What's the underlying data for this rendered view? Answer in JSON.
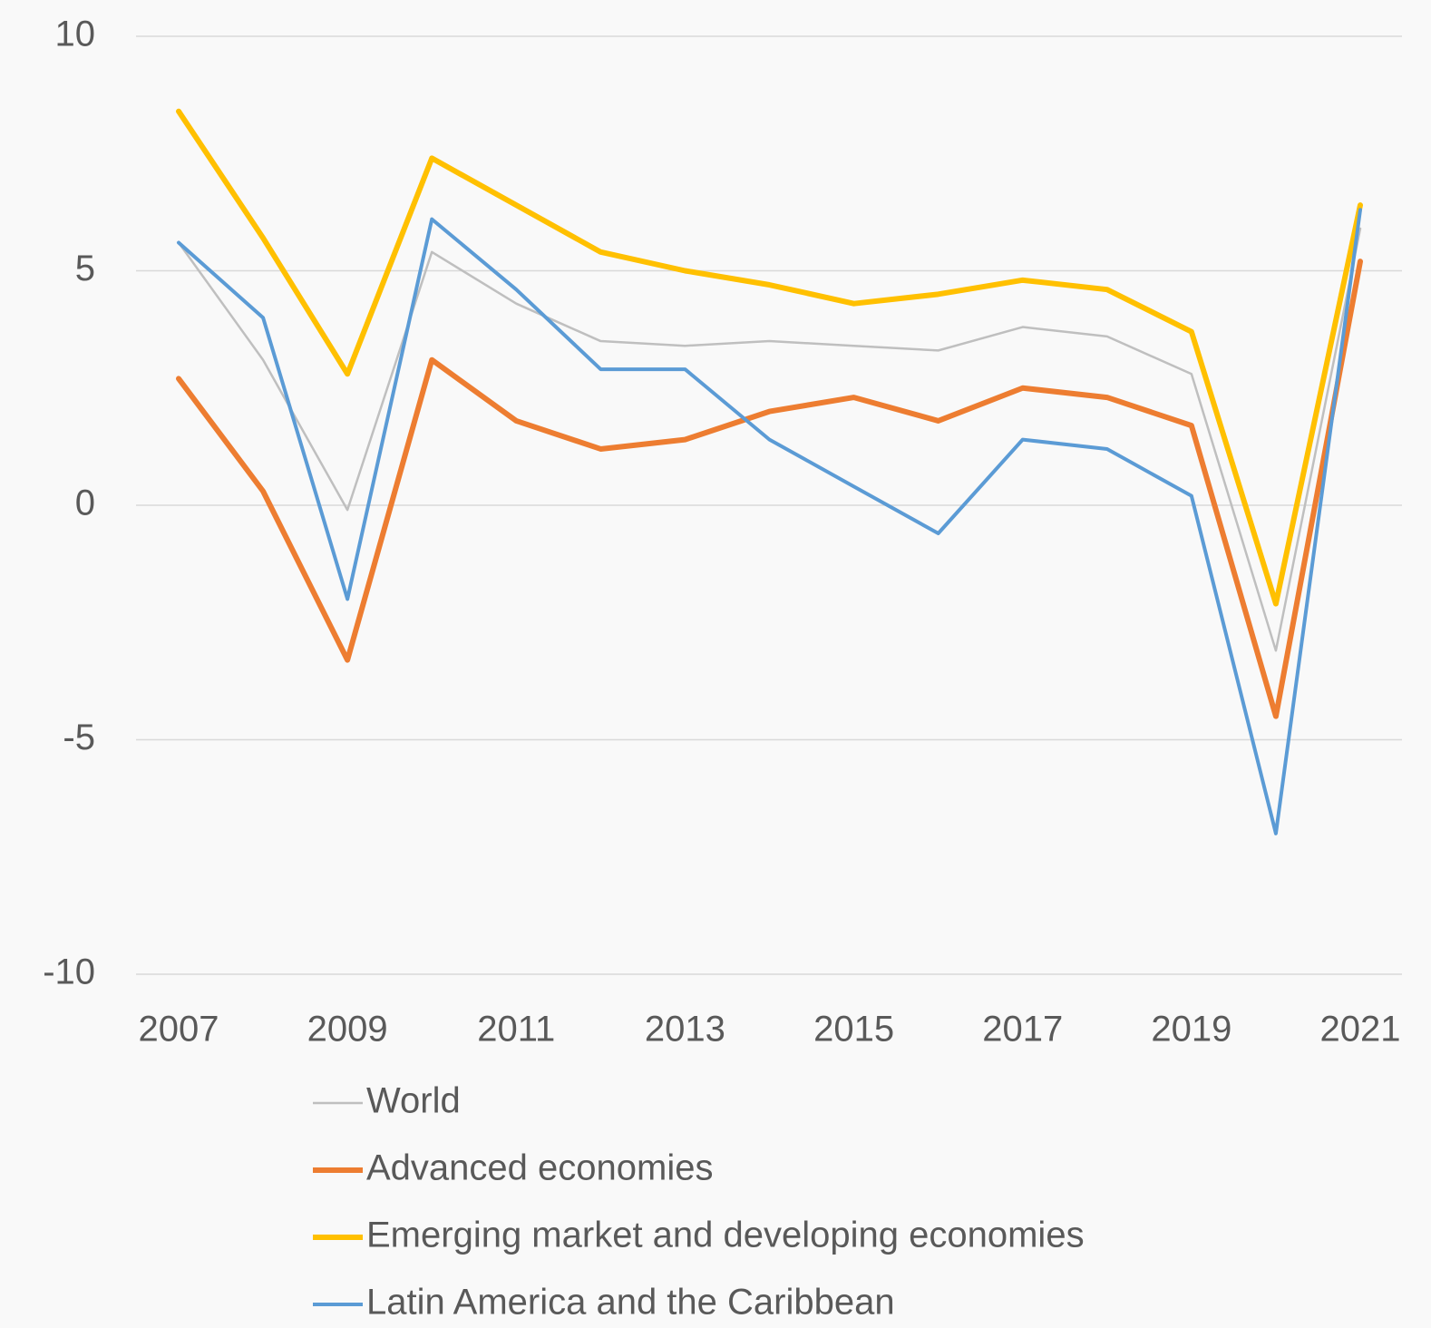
{
  "chart_data": {
    "type": "line",
    "x": [
      2007,
      2008,
      2009,
      2010,
      2011,
      2012,
      2013,
      2014,
      2015,
      2016,
      2017,
      2018,
      2019,
      2020,
      2021
    ],
    "series": [
      {
        "name": "World",
        "color": "#bfbfbf",
        "values": [
          5.6,
          3.1,
          -0.1,
          5.4,
          4.3,
          3.5,
          3.4,
          3.5,
          3.4,
          3.3,
          3.8,
          3.6,
          2.8,
          -3.1,
          5.9
        ]
      },
      {
        "name": "Advanced economies",
        "color": "#ed7d31",
        "values": [
          2.7,
          0.3,
          -3.3,
          3.1,
          1.8,
          1.2,
          1.4,
          2.0,
          2.3,
          1.8,
          2.5,
          2.3,
          1.7,
          -4.5,
          5.2
        ]
      },
      {
        "name": "Emerging market and developing economies",
        "color": "#ffc000",
        "values": [
          8.4,
          5.7,
          2.8,
          7.4,
          6.4,
          5.4,
          5.0,
          4.7,
          4.3,
          4.5,
          4.8,
          4.6,
          3.7,
          -2.1,
          6.4
        ]
      },
      {
        "name": "Latin America and the Caribbean",
        "color": "#5b9bd5",
        "values": [
          5.6,
          4.0,
          -2.0,
          6.1,
          4.6,
          2.9,
          2.9,
          1.4,
          0.4,
          -0.6,
          1.4,
          1.2,
          0.2,
          -7.0,
          6.3
        ]
      }
    ],
    "xlim": [
      2007,
      2021
    ],
    "xticks": [
      2007,
      2009,
      2011,
      2013,
      2015,
      2017,
      2019,
      2021
    ],
    "ylim": [
      -10,
      10
    ],
    "yticks": [
      -10,
      -5,
      0,
      5,
      10
    ],
    "grid": true,
    "legend": "bottom"
  }
}
